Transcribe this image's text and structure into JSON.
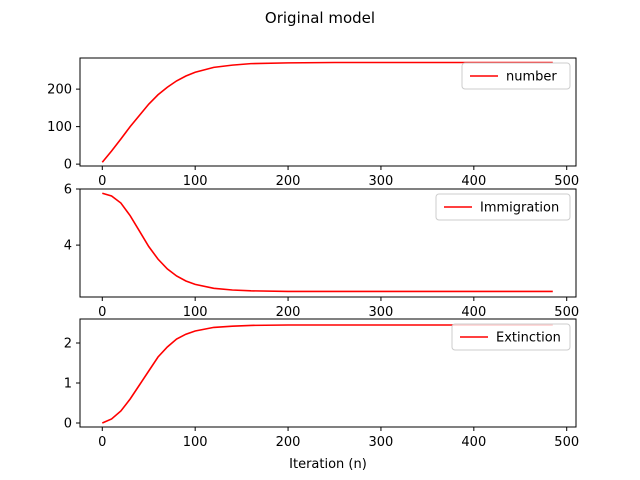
{
  "figure": {
    "title": "Original model",
    "xlabel": "Iteration (n)"
  },
  "chart_data": [
    {
      "type": "line",
      "title": "",
      "xlabel": "",
      "ylabel": "",
      "xlim": [
        -24,
        510
      ],
      "ylim": [
        -5,
        283
      ],
      "xticks": [
        0,
        100,
        200,
        300,
        400,
        500
      ],
      "yticks": [
        0,
        100,
        200
      ],
      "grid": false,
      "legend_position": "upper right",
      "series": [
        {
          "name": "number",
          "color": "#ff0000",
          "x": [
            0,
            10,
            20,
            30,
            40,
            50,
            60,
            70,
            80,
            90,
            100,
            120,
            140,
            160,
            200,
            250,
            300,
            400,
            485
          ],
          "y": [
            5,
            35,
            67,
            100,
            130,
            160,
            185,
            205,
            222,
            235,
            245,
            258,
            264,
            268,
            270,
            271,
            271,
            271,
            271
          ]
        }
      ]
    },
    {
      "type": "line",
      "title": "",
      "xlabel": "",
      "ylabel": "",
      "xlim": [
        -24,
        510
      ],
      "ylim": [
        2.15,
        6.0
      ],
      "xticks": [
        0,
        100,
        200,
        300,
        400,
        500
      ],
      "yticks": [
        4,
        6
      ],
      "grid": false,
      "legend_position": "upper right",
      "series": [
        {
          "name": "Immigration",
          "color": "#ff0000",
          "x": [
            0,
            10,
            20,
            30,
            40,
            50,
            60,
            70,
            80,
            90,
            100,
            120,
            140,
            160,
            200,
            250,
            300,
            400,
            485
          ],
          "y": [
            5.85,
            5.75,
            5.5,
            5.05,
            4.5,
            3.95,
            3.5,
            3.15,
            2.9,
            2.72,
            2.6,
            2.46,
            2.4,
            2.37,
            2.35,
            2.35,
            2.35,
            2.35,
            2.35
          ]
        }
      ]
    },
    {
      "type": "line",
      "title": "",
      "xlabel": "Iteration (n)",
      "ylabel": "",
      "xlim": [
        -24,
        510
      ],
      "ylim": [
        -0.1,
        2.6
      ],
      "xticks": [
        0,
        100,
        200,
        300,
        400,
        500
      ],
      "yticks": [
        0,
        1,
        2
      ],
      "grid": false,
      "legend_position": "upper right",
      "series": [
        {
          "name": "Extinction",
          "color": "#ff0000",
          "x": [
            0,
            10,
            20,
            30,
            40,
            50,
            60,
            70,
            80,
            90,
            100,
            120,
            140,
            160,
            200,
            250,
            300,
            400,
            485
          ],
          "y": [
            0,
            0.1,
            0.3,
            0.6,
            0.95,
            1.3,
            1.65,
            1.9,
            2.1,
            2.22,
            2.3,
            2.39,
            2.42,
            2.44,
            2.45,
            2.45,
            2.45,
            2.45,
            2.45
          ]
        }
      ]
    }
  ]
}
